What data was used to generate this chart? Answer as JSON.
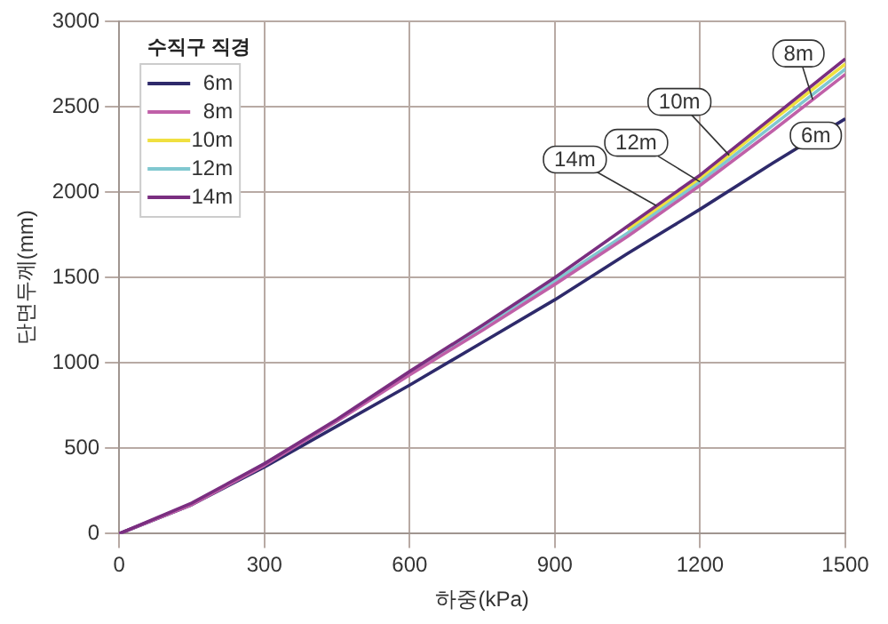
{
  "chart_data": {
    "type": "line",
    "xlabel": "하중(kPa)",
    "ylabel": "단면두께(mm)",
    "legend_title": "수직구 직경",
    "x": [
      0,
      150,
      300,
      450,
      600,
      750,
      900,
      1050,
      1200,
      1350,
      1500
    ],
    "series": [
      {
        "name": "6m",
        "color": "#2e2a6b",
        "values": [
          0,
          170,
          390,
          630,
          870,
          1120,
          1370,
          1640,
          1900,
          2170,
          2430
        ]
      },
      {
        "name": "8m",
        "color": "#c060a8",
        "values": [
          0,
          170,
          400,
          660,
          930,
          1190,
          1460,
          1740,
          2040,
          2360,
          2690
        ]
      },
      {
        "name": "10m",
        "color": "#f0e040",
        "values": [
          null,
          null,
          null,
          null,
          null,
          null,
          null,
          1780,
          2080,
          2420,
          2750
        ]
      },
      {
        "name": "12m",
        "color": "#80c8d0",
        "values": [
          0,
          170,
          410,
          660,
          940,
          1210,
          1480,
          1760,
          2060,
          2390,
          2720
        ]
      },
      {
        "name": "14m",
        "color": "#7a2e80",
        "values": [
          0,
          180,
          410,
          670,
          950,
          1220,
          1500,
          1800,
          2100,
          2440,
          2780
        ]
      }
    ],
    "xlim": [
      0,
      1500
    ],
    "xticks": [
      0,
      300,
      600,
      900,
      1200,
      1500
    ],
    "ylim": [
      0,
      3000
    ],
    "yticks": [
      0,
      500,
      1000,
      1500,
      2000,
      2500,
      3000
    ],
    "grid": true,
    "legend": "top left",
    "marker": "none",
    "line_style": "solid"
  }
}
